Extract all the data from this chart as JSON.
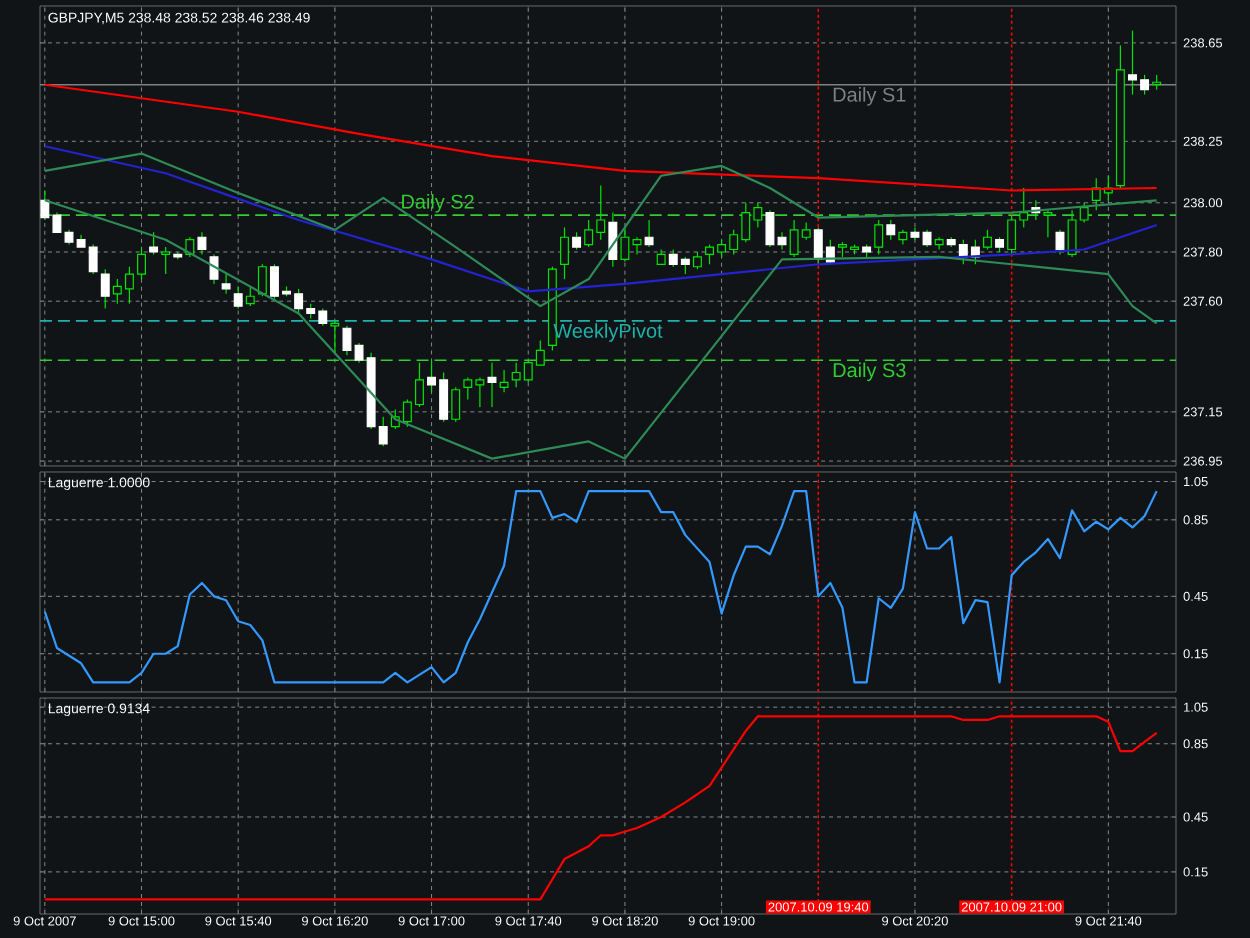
{
  "chart_data": [
    {
      "type": "candlestick",
      "title": "GBPJPY,M5  238.48 238.52 238.46 238.49",
      "x": [
        "2007-10-09T14:20",
        "2007-10-09T14:25",
        "2007-10-09T14:30",
        "2007-10-09T14:35",
        "2007-10-09T14:40",
        "2007-10-09T14:45",
        "2007-10-09T14:50",
        "2007-10-09T14:55",
        "2007-10-09T15:00",
        "2007-10-09T15:05",
        "2007-10-09T15:10",
        "2007-10-09T15:15",
        "2007-10-09T15:20",
        "2007-10-09T15:25",
        "2007-10-09T15:30",
        "2007-10-09T15:35",
        "2007-10-09T15:40",
        "2007-10-09T15:45",
        "2007-10-09T15:50",
        "2007-10-09T15:55",
        "2007-10-09T16:00",
        "2007-10-09T16:05",
        "2007-10-09T16:10",
        "2007-10-09T16:15",
        "2007-10-09T16:20",
        "2007-10-09T16:25",
        "2007-10-09T16:30",
        "2007-10-09T16:35",
        "2007-10-09T16:40",
        "2007-10-09T16:45",
        "2007-10-09T16:50",
        "2007-10-09T16:55",
        "2007-10-09T17:00",
        "2007-10-09T17:05",
        "2007-10-09T17:10",
        "2007-10-09T17:15",
        "2007-10-09T17:20",
        "2007-10-09T17:25",
        "2007-10-09T17:30",
        "2007-10-09T17:35",
        "2007-10-09T17:40",
        "2007-10-09T17:45",
        "2007-10-09T17:50",
        "2007-10-09T17:55",
        "2007-10-09T18:00",
        "2007-10-09T18:05",
        "2007-10-09T18:10",
        "2007-10-09T18:15",
        "2007-10-09T18:20",
        "2007-10-09T18:25",
        "2007-10-09T18:30",
        "2007-10-09T18:35",
        "2007-10-09T18:40",
        "2007-10-09T18:45",
        "2007-10-09T18:50",
        "2007-10-09T18:55",
        "2007-10-09T19:00",
        "2007-10-09T19:05",
        "2007-10-09T19:10",
        "2007-10-09T19:15",
        "2007-10-09T19:20",
        "2007-10-09T19:25",
        "2007-10-09T19:30",
        "2007-10-09T19:35",
        "2007-10-09T19:40",
        "2007-10-09T19:45",
        "2007-10-09T19:50",
        "2007-10-09T19:55",
        "2007-10-09T20:00",
        "2007-10-09T20:05",
        "2007-10-09T20:10",
        "2007-10-09T20:15",
        "2007-10-09T20:20",
        "2007-10-09T20:25",
        "2007-10-09T20:30",
        "2007-10-09T20:35",
        "2007-10-09T20:40",
        "2007-10-09T20:45",
        "2007-10-09T20:50",
        "2007-10-09T20:55",
        "2007-10-09T21:00",
        "2007-10-09T21:05",
        "2007-10-09T21:10",
        "2007-10-09T21:15",
        "2007-10-09T21:20",
        "2007-10-09T21:25",
        "2007-10-09T21:30",
        "2007-10-09T21:35",
        "2007-10-09T21:40",
        "2007-10-09T21:45",
        "2007-10-09T21:50",
        "2007-10-09T21:55",
        "2007-10-09T22:00"
      ],
      "ohlc": [
        [
          238.01,
          238.05,
          237.93,
          237.94
        ],
        [
          237.95,
          237.96,
          237.88,
          237.88
        ],
        [
          237.88,
          237.89,
          237.83,
          237.84
        ],
        [
          237.85,
          237.87,
          237.82,
          237.82
        ],
        [
          237.82,
          237.83,
          237.71,
          237.72
        ],
        [
          237.71,
          237.73,
          237.57,
          237.62
        ],
        [
          237.63,
          237.69,
          237.59,
          237.66
        ],
        [
          237.65,
          237.74,
          237.59,
          237.71
        ],
        [
          237.71,
          237.82,
          237.69,
          237.79
        ],
        [
          237.82,
          237.88,
          237.79,
          237.8
        ],
        [
          237.79,
          237.82,
          237.71,
          237.8
        ],
        [
          237.79,
          237.8,
          237.77,
          237.78
        ],
        [
          237.79,
          237.86,
          237.78,
          237.85
        ],
        [
          237.86,
          237.88,
          237.79,
          237.81
        ],
        [
          237.78,
          237.79,
          237.67,
          237.69
        ],
        [
          237.67,
          237.71,
          237.63,
          237.65
        ],
        [
          237.63,
          237.66,
          237.57,
          237.58
        ],
        [
          237.59,
          237.66,
          237.58,
          237.62
        ],
        [
          237.63,
          237.75,
          237.62,
          237.74
        ],
        [
          237.74,
          237.75,
          237.61,
          237.62
        ],
        [
          237.64,
          237.66,
          237.62,
          237.63
        ],
        [
          237.63,
          237.65,
          237.55,
          237.57
        ],
        [
          237.57,
          237.59,
          237.53,
          237.55
        ],
        [
          237.56,
          237.57,
          237.5,
          237.51
        ],
        [
          237.5,
          237.52,
          237.39,
          237.51
        ],
        [
          237.49,
          237.5,
          237.38,
          237.4
        ],
        [
          237.42,
          237.43,
          237.35,
          237.36
        ],
        [
          237.37,
          237.39,
          237.08,
          237.09
        ],
        [
          237.09,
          237.13,
          237.01,
          237.02
        ],
        [
          237.09,
          237.16,
          237.08,
          237.13
        ],
        [
          237.11,
          237.2,
          237.09,
          237.19
        ],
        [
          237.18,
          237.35,
          237.17,
          237.28
        ],
        [
          237.29,
          237.36,
          237.23,
          237.26
        ],
        [
          237.28,
          237.31,
          237.11,
          237.12
        ],
        [
          237.12,
          237.25,
          237.11,
          237.24
        ],
        [
          237.25,
          237.29,
          237.2,
          237.28
        ],
        [
          237.26,
          237.29,
          237.17,
          237.28
        ],
        [
          237.29,
          237.35,
          237.17,
          237.27
        ],
        [
          237.25,
          237.32,
          237.23,
          237.27
        ],
        [
          237.28,
          237.35,
          237.25,
          237.31
        ],
        [
          237.28,
          237.36,
          237.27,
          237.35
        ],
        [
          237.34,
          237.44,
          237.34,
          237.4
        ],
        [
          237.42,
          237.74,
          237.4,
          237.73
        ],
        [
          237.75,
          237.9,
          237.69,
          237.86
        ],
        [
          237.86,
          237.88,
          237.81,
          237.82
        ],
        [
          237.83,
          237.93,
          237.82,
          237.89
        ],
        [
          237.88,
          238.07,
          237.85,
          237.93
        ],
        [
          237.92,
          237.96,
          237.74,
          237.77
        ],
        [
          237.77,
          237.9,
          237.76,
          237.86
        ],
        [
          237.83,
          237.86,
          237.79,
          237.85
        ],
        [
          237.86,
          237.93,
          237.82,
          237.83
        ],
        [
          237.75,
          237.81,
          237.75,
          237.79
        ],
        [
          237.79,
          237.81,
          237.74,
          237.75
        ],
        [
          237.77,
          237.78,
          237.71,
          237.75
        ],
        [
          237.74,
          237.8,
          237.73,
          237.78
        ],
        [
          237.79,
          237.83,
          237.75,
          237.82
        ],
        [
          237.8,
          237.85,
          237.78,
          237.83
        ],
        [
          237.81,
          237.89,
          237.79,
          237.87
        ],
        [
          237.85,
          238.0,
          237.84,
          237.96
        ],
        [
          237.93,
          238.0,
          237.9,
          237.98
        ],
        [
          237.96,
          237.97,
          237.82,
          237.83
        ],
        [
          237.86,
          237.88,
          237.81,
          237.83
        ],
        [
          237.79,
          237.93,
          237.78,
          237.89
        ],
        [
          237.86,
          237.92,
          237.85,
          237.89
        ],
        [
          237.89,
          237.9,
          237.75,
          237.77
        ],
        [
          237.82,
          237.85,
          237.75,
          237.76
        ],
        [
          237.82,
          237.84,
          237.78,
          237.83
        ],
        [
          237.81,
          237.83,
          237.79,
          237.82
        ],
        [
          237.82,
          237.83,
          237.78,
          237.8
        ],
        [
          237.82,
          237.93,
          237.79,
          237.91
        ],
        [
          237.91,
          237.93,
          237.85,
          237.87
        ],
        [
          237.85,
          237.89,
          237.83,
          237.88
        ],
        [
          237.88,
          237.9,
          237.85,
          237.86
        ],
        [
          237.88,
          237.89,
          237.82,
          237.83
        ],
        [
          237.83,
          237.86,
          237.81,
          237.85
        ],
        [
          237.85,
          237.86,
          237.82,
          237.83
        ],
        [
          237.83,
          237.85,
          237.75,
          237.78
        ],
        [
          237.82,
          237.85,
          237.75,
          237.78
        ],
        [
          237.82,
          237.89,
          237.81,
          237.86
        ],
        [
          237.85,
          237.86,
          237.8,
          237.82
        ],
        [
          237.81,
          237.95,
          237.79,
          237.93
        ],
        [
          237.93,
          238.06,
          237.9,
          237.96
        ],
        [
          237.98,
          238.01,
          237.93,
          237.96
        ],
        [
          237.95,
          237.97,
          237.86,
          237.96
        ],
        [
          237.88,
          237.89,
          237.79,
          237.81
        ],
        [
          237.79,
          237.97,
          237.78,
          237.93
        ],
        [
          237.93,
          238.0,
          237.92,
          237.98
        ],
        [
          238.01,
          238.1,
          237.97,
          238.06
        ],
        [
          238.04,
          238.11,
          238.01,
          238.06
        ],
        [
          238.07,
          238.64,
          238.06,
          238.54
        ],
        [
          238.52,
          238.7,
          238.44,
          238.5
        ],
        [
          238.5,
          238.52,
          238.44,
          238.46
        ],
        [
          238.48,
          238.52,
          238.46,
          238.49
        ]
      ],
      "series": [
        {
          "type": "line",
          "color": "#ff0000",
          "x": [
            "2007-10-09T14:20",
            "2007-10-09T15:40",
            "2007-10-09T16:30",
            "2007-10-09T17:25",
            "2007-10-09T18:20",
            "2007-10-09T19:40",
            "2007-10-09T21:00",
            "2007-10-09T22:00"
          ],
          "values": [
            238.48,
            238.37,
            238.28,
            238.19,
            238.13,
            238.1,
            238.05,
            238.06
          ]
        },
        {
          "type": "line",
          "color": "#2323d0",
          "x": [
            "2007-10-09T14:20",
            "2007-10-09T15:10",
            "2007-10-09T16:05",
            "2007-10-09T17:00",
            "2007-10-09T17:40",
            "2007-10-09T18:20",
            "2007-10-09T19:40",
            "2007-10-09T21:00",
            "2007-10-09T21:30",
            "2007-10-09T22:00"
          ],
          "values": [
            238.23,
            238.12,
            237.93,
            237.77,
            237.64,
            237.67,
            237.75,
            237.79,
            237.81,
            237.91
          ]
        },
        {
          "type": "line",
          "color": "#2e8b57",
          "x": [
            "2007-10-09T14:20",
            "2007-10-09T15:00",
            "2007-10-09T15:40",
            "2007-10-09T16:20",
            "2007-10-09T16:40",
            "2007-10-09T17:10",
            "2007-10-09T17:45",
            "2007-10-09T18:05",
            "2007-10-09T18:35",
            "2007-10-09T19:00",
            "2007-10-09T19:20",
            "2007-10-09T19:40",
            "2007-10-09T21:00",
            "2007-10-09T22:00"
          ],
          "values": [
            238.13,
            238.2,
            238.04,
            237.89,
            238.02,
            237.82,
            237.58,
            237.69,
            238.11,
            238.15,
            238.06,
            237.94,
            237.96,
            238.01
          ]
        },
        {
          "type": "line",
          "color": "#2e8b57",
          "x": [
            "2007-10-09T14:20",
            "2007-10-09T15:10",
            "2007-10-09T16:05",
            "2007-10-09T16:45",
            "2007-10-09T17:25",
            "2007-10-09T18:05",
            "2007-10-09T18:20",
            "2007-10-09T19:25",
            "2007-10-09T20:30",
            "2007-10-09T21:00",
            "2007-10-09T21:40",
            "2007-10-09T21:50",
            "2007-10-09T22:00"
          ],
          "values": [
            238.01,
            237.85,
            237.55,
            237.12,
            236.96,
            237.03,
            236.96,
            237.77,
            237.78,
            237.75,
            237.71,
            237.58,
            237.51
          ]
        }
      ],
      "xlim": [
        "2007-10-09T14:18",
        "2007-10-09T22:08"
      ],
      "xticks": [
        {
          "value": "2007-10-09T14:20",
          "label": null
        },
        {
          "value": "2007-10-09T15:00",
          "label": null
        },
        {
          "value": "2007-10-09T15:40",
          "label": null
        },
        {
          "value": "2007-10-09T16:20",
          "label": null
        },
        {
          "value": "2007-10-09T17:00",
          "label": null
        },
        {
          "value": "2007-10-09T17:40",
          "label": null
        },
        {
          "value": "2007-10-09T18:20",
          "label": null
        },
        {
          "value": "2007-10-09T19:00",
          "label": null
        },
        {
          "value": "2007-10-09T20:20",
          "label": null
        },
        {
          "value": "2007-10-09T21:40",
          "label": null
        }
      ],
      "ylim": [
        236.93,
        238.8
      ],
      "yticks": [
        236.95,
        237.15,
        {
          "value": 237.6,
          "label": "237.60"
        },
        {
          "value": 237.8,
          "label": "237.80"
        },
        {
          "value": 238.0,
          "label": "238.00"
        },
        238.25,
        238.65
      ],
      "tick_labels": "y",
      "grid": true,
      "ref_lines": [
        {
          "axis": "y",
          "value": 238.48,
          "label": "Daily S1",
          "color": "#808080",
          "line_style": "solid"
        },
        {
          "axis": "y",
          "value": 237.95,
          "label": "Daily S2",
          "color": "#32cd32",
          "line_style": "dashed"
        },
        {
          "axis": "y",
          "value": 237.52,
          "label": "WeeklyPivot",
          "color": "#20b2aa",
          "line_style": "dashed"
        },
        {
          "axis": "y",
          "value": 237.36,
          "label": "Daily S3",
          "color": "#32cd32",
          "line_style": "dashed"
        },
        {
          "axis": "x",
          "value": "2007-10-09T19:40",
          "color": "#ff0000",
          "line_style": "dotted"
        },
        {
          "axis": "x",
          "value": "2007-10-09T21:00",
          "color": "#ff0000",
          "line_style": "dotted"
        }
      ]
    },
    {
      "type": "line",
      "title": "Laguerre 1.0000",
      "series": [
        {
          "color": "#3399ff",
          "x": [
            "2007-10-09T14:20",
            "2007-10-09T14:25",
            "2007-10-09T14:35",
            "2007-10-09T14:40",
            "2007-10-09T14:55",
            "2007-10-09T15:00",
            "2007-10-09T15:05",
            "2007-10-09T15:10",
            "2007-10-09T15:15",
            "2007-10-09T15:20",
            "2007-10-09T15:25",
            "2007-10-09T15:30",
            "2007-10-09T15:35",
            "2007-10-09T15:40",
            "2007-10-09T15:45",
            "2007-10-09T15:50",
            "2007-10-09T15:55",
            "2007-10-09T16:40",
            "2007-10-09T16:45",
            "2007-10-09T16:50",
            "2007-10-09T17:00",
            "2007-10-09T17:05",
            "2007-10-09T17:10",
            "2007-10-09T17:15",
            "2007-10-09T17:20",
            "2007-10-09T17:30",
            "2007-10-09T17:35",
            "2007-10-09T17:45",
            "2007-10-09T17:50",
            "2007-10-09T17:55",
            "2007-10-09T18:00",
            "2007-10-09T18:05",
            "2007-10-09T18:30",
            "2007-10-09T18:35",
            "2007-10-09T18:40",
            "2007-10-09T18:45",
            "2007-10-09T18:55",
            "2007-10-09T19:00",
            "2007-10-09T19:05",
            "2007-10-09T19:10",
            "2007-10-09T19:15",
            "2007-10-09T19:20",
            "2007-10-09T19:25",
            "2007-10-09T19:30",
            "2007-10-09T19:35",
            "2007-10-09T19:40",
            "2007-10-09T19:45",
            "2007-10-09T19:50",
            "2007-10-09T19:55",
            "2007-10-09T20:00",
            "2007-10-09T20:05",
            "2007-10-09T20:10",
            "2007-10-09T20:15",
            "2007-10-09T20:20",
            "2007-10-09T20:25",
            "2007-10-09T20:30",
            "2007-10-09T20:35",
            "2007-10-09T20:40",
            "2007-10-09T20:45",
            "2007-10-09T20:50",
            "2007-10-09T20:55",
            "2007-10-09T21:00",
            "2007-10-09T21:05",
            "2007-10-09T21:10",
            "2007-10-09T21:15",
            "2007-10-09T21:20",
            "2007-10-09T21:25",
            "2007-10-09T21:30",
            "2007-10-09T21:35",
            "2007-10-09T21:40",
            "2007-10-09T21:45",
            "2007-10-09T21:50",
            "2007-10-09T21:55",
            "2007-10-09T22:00"
          ],
          "values": [
            0.37,
            0.18,
            0.1,
            0.0,
            0.0,
            0.05,
            0.15,
            0.15,
            0.19,
            0.46,
            0.52,
            0.45,
            0.43,
            0.32,
            0.3,
            0.22,
            0.0,
            0.0,
            0.05,
            0.0,
            0.08,
            0.0,
            0.05,
            0.21,
            0.33,
            0.61,
            1.0,
            1.0,
            0.86,
            0.88,
            0.84,
            1.0,
            1.0,
            0.89,
            0.89,
            0.77,
            0.63,
            0.36,
            0.56,
            0.71,
            0.71,
            0.67,
            0.82,
            1.0,
            1.0,
            0.45,
            0.52,
            0.39,
            0.0,
            0.0,
            0.44,
            0.39,
            0.49,
            0.89,
            0.7,
            0.7,
            0.76,
            0.31,
            0.43,
            0.42,
            0.0,
            0.56,
            0.63,
            0.68,
            0.75,
            0.65,
            0.9,
            0.79,
            0.84,
            0.8,
            0.86,
            0.81,
            0.87,
            1.0
          ]
        }
      ],
      "xlim": [
        "2007-10-09T14:18",
        "2007-10-09T22:08"
      ],
      "xticks": [
        {
          "value": "2007-10-09T14:20",
          "label": null
        },
        {
          "value": "2007-10-09T15:00",
          "label": null
        },
        {
          "value": "2007-10-09T15:40",
          "label": null
        },
        {
          "value": "2007-10-09T16:20",
          "label": null
        },
        {
          "value": "2007-10-09T17:00",
          "label": null
        },
        {
          "value": "2007-10-09T17:40",
          "label": null
        },
        {
          "value": "2007-10-09T18:20",
          "label": null
        },
        {
          "value": "2007-10-09T19:00",
          "label": null
        },
        {
          "value": "2007-10-09T20:20",
          "label": null
        },
        {
          "value": "2007-10-09T21:40",
          "label": null
        }
      ],
      "ylim": [
        -0.05,
        1.1
      ],
      "yticks": [
        0.15,
        0.45,
        0.85,
        1.05
      ],
      "tick_labels": "y",
      "grid": true,
      "ref_lines": [
        {
          "axis": "x",
          "value": "2007-10-09T19:40",
          "color": "#ff0000",
          "line_style": "dotted"
        },
        {
          "axis": "x",
          "value": "2007-10-09T21:00",
          "color": "#ff0000",
          "line_style": "dotted"
        }
      ]
    },
    {
      "type": "line",
      "title": "Laguerre 0.9134",
      "series": [
        {
          "color": "#ff0000",
          "x": [
            "2007-10-09T14:20",
            "2007-10-09T17:45",
            "2007-10-09T17:50",
            "2007-10-09T17:55",
            "2007-10-09T18:05",
            "2007-10-09T18:10",
            "2007-10-09T18:15",
            "2007-10-09T18:25",
            "2007-10-09T18:35",
            "2007-10-09T18:45",
            "2007-10-09T18:55",
            "2007-10-09T19:00",
            "2007-10-09T19:10",
            "2007-10-09T19:15",
            "2007-10-09T20:35",
            "2007-10-09T20:40",
            "2007-10-09T20:50",
            "2007-10-09T20:55",
            "2007-10-09T21:35",
            "2007-10-09T21:40",
            "2007-10-09T21:45",
            "2007-10-09T21:50",
            "2007-10-09T21:55",
            "2007-10-09T22:00"
          ],
          "values": [
            0.0,
            0.0,
            0.11,
            0.22,
            0.29,
            0.35,
            0.35,
            0.39,
            0.45,
            0.53,
            0.62,
            0.72,
            0.92,
            1.0,
            1.0,
            0.98,
            0.98,
            1.0,
            1.0,
            0.97,
            0.81,
            0.81,
            0.86,
            0.91
          ]
        }
      ],
      "xlim": [
        "2007-10-09T14:18",
        "2007-10-09T22:08"
      ],
      "xticks": [
        {
          "value": "2007-10-09T14:20",
          "label": "9 Oct 2007"
        },
        {
          "value": "2007-10-09T15:00",
          "label": "9 Oct 15:00"
        },
        {
          "value": "2007-10-09T15:40",
          "label": "9 Oct 15:40"
        },
        {
          "value": "2007-10-09T16:20",
          "label": "9 Oct 16:20"
        },
        {
          "value": "2007-10-09T17:00",
          "label": "9 Oct 17:00"
        },
        {
          "value": "2007-10-09T17:40",
          "label": "9 Oct 17:40"
        },
        {
          "value": "2007-10-09T18:20",
          "label": "9 Oct 18:20"
        },
        {
          "value": "2007-10-09T19:00",
          "label": "9 Oct 19:00"
        },
        {
          "value": "2007-10-09T20:20",
          "label": "9 Oct 20:20"
        },
        {
          "value": "2007-10-09T21:40",
          "label": "9 Oct 21:40"
        }
      ],
      "ylim": [
        -0.08,
        1.1
      ],
      "yticks": [
        0.15,
        0.45,
        0.85,
        1.05
      ],
      "grid": true,
      "ref_lines": [
        {
          "axis": "x",
          "value": "2007-10-09T19:40",
          "label": "2007.10.09 19:40",
          "color": "#ff0000",
          "line_style": "dotted"
        },
        {
          "axis": "x",
          "value": "2007-10-09T21:00",
          "label": "2007.10.09 21:00",
          "color": "#ff0000",
          "line_style": "dotted"
        }
      ]
    }
  ]
}
